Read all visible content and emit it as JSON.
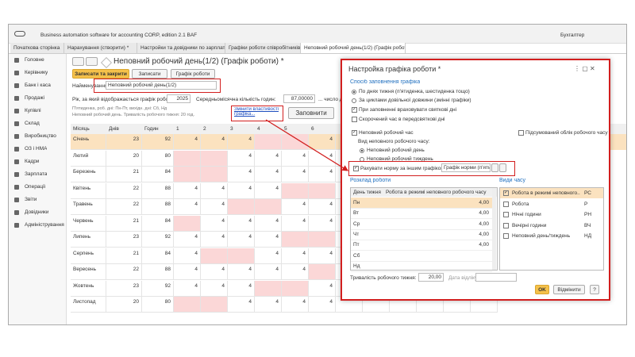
{
  "app": {
    "title": "Business automation software for accounting CORP, edition 2.1 BAF",
    "user": "Бухгалтер"
  },
  "tabs": [
    "Початкова сторінка",
    "Нарахування (створити) *",
    "Настройки та довідники по зарплаті",
    "Графіки роботи співробітників",
    "Неповний робочий день(1/2) (Графік роботи) *"
  ],
  "sidebar": [
    "Головне",
    "Керівнику",
    "Банк і каса",
    "Продажі",
    "Купівлі",
    "Склад",
    "Виробництво",
    "ОЗ і НМА",
    "Кадри",
    "Зарплата",
    "Операції",
    "Звіти",
    "Довідники",
    "Адміністрування"
  ],
  "form": {
    "title": "Неповний робочий день(1/2) (Графік роботи) *",
    "buttons": [
      "Записати та закрити",
      "Записати",
      "Графік роботи"
    ],
    "name_label": "Найменування:",
    "name_value": "Неповний робочий день(1/2)",
    "year_label": "Рік, за який відображається графік роботи:",
    "year": "2025",
    "avg_label": "Середньомісячна кількість годин:",
    "avg": "87,00000",
    "days_label": "... число днів...",
    "info": [
      "П'ятиденка, роб. дні: Пн-Пт, вихідн. дні: Сб, Нд",
      "Неповний робочий день. Тривалість робочого тижня: 20 год."
    ],
    "link": "Змінити властивості графіка...",
    "fill_button": "Заповнити"
  },
  "table": {
    "columns": [
      "Місяць",
      "Днів",
      "Годин",
      "1",
      "2",
      "3",
      "4",
      "5",
      "6"
    ],
    "rows": [
      [
        "Січень",
        23,
        92,
        4,
        4,
        4,
        null,
        null,
        4
      ],
      [
        "Лютий",
        20,
        80,
        null,
        null,
        4,
        4,
        4,
        4
      ],
      [
        "Березень",
        21,
        84,
        null,
        null,
        4,
        4,
        4,
        4
      ],
      [
        "Квітень",
        22,
        88,
        4,
        4,
        4,
        4,
        null,
        null
      ],
      [
        "Травень",
        22,
        88,
        4,
        4,
        null,
        null,
        4,
        4
      ],
      [
        "Червень",
        21,
        84,
        null,
        4,
        4,
        4,
        4,
        4
      ],
      [
        "Липень",
        23,
        92,
        4,
        4,
        4,
        4,
        null,
        null
      ],
      [
        "Серпень",
        21,
        84,
        4,
        null,
        null,
        4,
        4,
        4
      ],
      [
        "Вересень",
        22,
        88,
        4,
        4,
        4,
        4,
        4,
        null
      ],
      [
        "Жовтень",
        23,
        92,
        4,
        4,
        4,
        null,
        null,
        4
      ],
      [
        "Листопад",
        20,
        80,
        null,
        null,
        4,
        4,
        4,
        4
      ]
    ]
  },
  "dialog": {
    "title": "Настройка графіка роботи *",
    "fill_section": "Спосіб заповнення графіка",
    "fill_options": [
      "По днях тижня (п'ятиденка, шестиденка тощо)",
      "За циклами довільної довжини (змінні графіки)"
    ],
    "holidays": "При заповненні враховувати святкові дні",
    "preholiday": "Скорочений час в передсвяткові дні",
    "part_time": "Неповний робочий час",
    "summary": "Підсумований облік робочого часу",
    "part_kind_label": "Вид неповного робочого часу:",
    "part_kinds": [
      "Неповний робочий день",
      "Неповний робочий тиждень"
    ],
    "other_norm": "Рахувати норму за іншим графіком:",
    "other_norm_value": "Графік норми (п'ятид",
    "schedule_section": "Розклад роботи",
    "schedule_columns": [
      "День тижня",
      "Робота в режимі неповного робочого часу"
    ],
    "schedule": [
      [
        "Пн",
        "4,00"
      ],
      [
        "Вт",
        "4,00"
      ],
      [
        "Ср",
        "4,00"
      ],
      [
        "Чт",
        "4,00"
      ],
      [
        "Пт",
        "4,00"
      ],
      [
        "Сб",
        null
      ],
      [
        "Нд",
        null
      ]
    ],
    "kinds_section": "Види часу",
    "kinds": [
      [
        "Робота в режимі неповного...",
        "РС"
      ],
      [
        "Робота",
        "Р"
      ],
      [
        "Нічні години",
        "РН"
      ],
      [
        "Вечірні години",
        "ВЧ"
      ],
      [
        "Неповний день/тиждень",
        "НД"
      ]
    ],
    "week_label": "Тривалість робочого тижня:",
    "week_value": "20,00",
    "start_label": "Дата відліку:",
    "ok": "OK",
    "cancel": "Відмінити",
    "help": "?"
  }
}
